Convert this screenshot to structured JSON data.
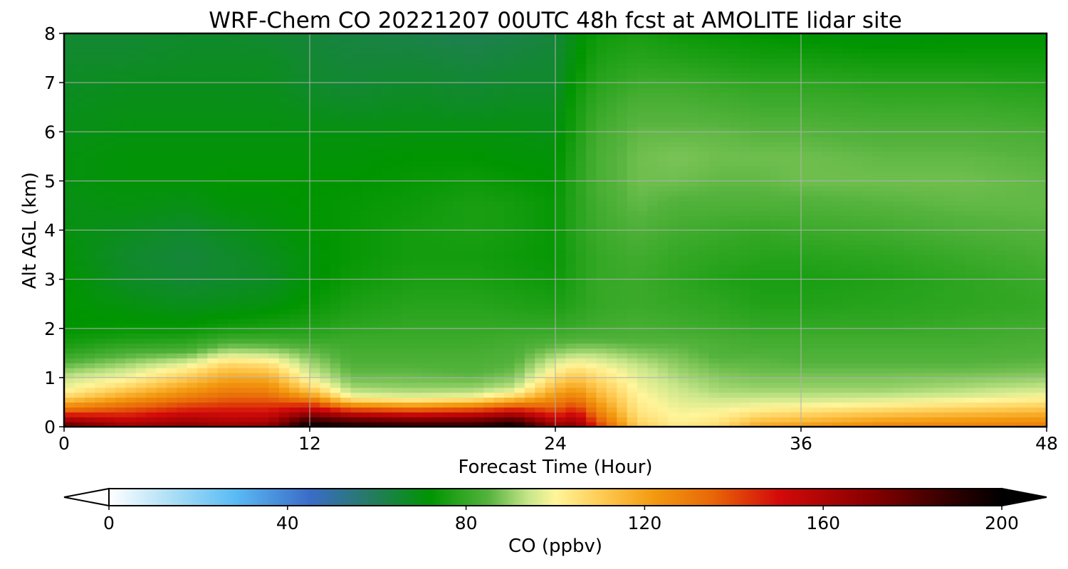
{
  "chart_data": {
    "type": "heatmap",
    "title": "WRF-Chem CO  20221207 00UTC 48h fcst at AMOLITE lidar site",
    "xlabel": "Forecast Time (Hour)",
    "ylabel": "Alt AGL (km)",
    "xlim": [
      0,
      48
    ],
    "ylim": [
      0,
      8
    ],
    "xticks": [
      "0",
      "12",
      "24",
      "36",
      "48"
    ],
    "yticks": [
      "0",
      "1",
      "2",
      "3",
      "4",
      "5",
      "6",
      "7",
      "8"
    ],
    "grid": true,
    "colorbar": {
      "label": "CO  (ppbv)",
      "range": [
        0,
        200
      ],
      "extend": "both",
      "ticks": [
        "0",
        "40",
        "80",
        "120",
        "160",
        "200"
      ],
      "stops": [
        {
          "v": 0,
          "color": "#ffffff"
        },
        {
          "v": 15,
          "color": "#a6dcf5"
        },
        {
          "v": 28,
          "color": "#5bbcf5"
        },
        {
          "v": 45,
          "color": "#3a6cc8"
        },
        {
          "v": 58,
          "color": "#267a66"
        },
        {
          "v": 72,
          "color": "#009500"
        },
        {
          "v": 85,
          "color": "#55b33d"
        },
        {
          "v": 94,
          "color": "#c8e68a"
        },
        {
          "v": 100,
          "color": "#fff59a"
        },
        {
          "v": 110,
          "color": "#ffcc55"
        },
        {
          "v": 122,
          "color": "#f39a10"
        },
        {
          "v": 135,
          "color": "#e86808"
        },
        {
          "v": 150,
          "color": "#d40a0a"
        },
        {
          "v": 170,
          "color": "#8a0000"
        },
        {
          "v": 190,
          "color": "#2a0000"
        },
        {
          "v": 200,
          "color": "#000000"
        }
      ]
    },
    "x_hours": [
      0,
      3,
      6,
      8,
      10,
      12,
      14,
      17,
      20,
      22,
      24,
      25,
      26,
      28,
      30,
      32,
      34,
      36,
      40,
      44,
      48
    ],
    "altitudes_km": [
      0.0,
      0.1,
      0.2,
      0.3,
      0.4,
      0.5,
      0.6,
      0.7,
      0.8,
      0.9,
      1.0,
      1.1,
      1.2,
      1.3,
      1.4,
      1.5,
      1.6,
      1.8,
      2.0,
      2.5,
      3.0,
      3.5,
      4.0,
      4.5,
      5.0,
      5.5,
      6.0,
      6.5,
      7.0,
      7.5,
      8.0
    ],
    "values": [
      [
        182,
        165,
        170,
        165,
        170,
        200,
        195,
        192,
        192,
        200,
        168,
        170,
        145,
        110,
        102,
        106,
        120,
        123,
        128,
        128,
        130
      ],
      [
        168,
        158,
        164,
        160,
        162,
        192,
        185,
        180,
        180,
        188,
        160,
        165,
        140,
        108,
        101,
        104,
        114,
        116,
        122,
        124,
        126
      ],
      [
        155,
        150,
        158,
        155,
        156,
        178,
        168,
        162,
        165,
        172,
        150,
        158,
        135,
        106,
        100,
        102,
        109,
        111,
        116,
        119,
        121
      ],
      [
        140,
        142,
        150,
        150,
        150,
        162,
        150,
        145,
        148,
        155,
        142,
        150,
        130,
        104,
        99,
        100,
        104,
        106,
        110,
        113,
        116
      ],
      [
        128,
        135,
        143,
        145,
        145,
        150,
        132,
        128,
        132,
        140,
        135,
        142,
        126,
        103,
        98,
        98,
        100,
        101,
        104,
        107,
        110
      ],
      [
        118,
        128,
        137,
        140,
        140,
        138,
        115,
        110,
        115,
        125,
        130,
        136,
        122,
        102,
        97,
        96,
        97,
        97,
        99,
        102,
        105
      ],
      [
        108,
        120,
        130,
        135,
        135,
        125,
        100,
        98,
        100,
        110,
        125,
        130,
        118,
        101,
        96,
        94,
        94,
        94,
        95,
        97,
        100
      ],
      [
        102,
        114,
        125,
        131,
        130,
        115,
        95,
        93,
        94,
        100,
        120,
        125,
        115,
        100,
        95,
        92,
        92,
        92,
        92,
        94,
        97
      ],
      [
        98,
        108,
        120,
        127,
        126,
        108,
        91,
        90,
        90,
        94,
        115,
        120,
        112,
        99,
        94,
        91,
        90,
        90,
        90,
        92,
        94
      ],
      [
        96,
        103,
        115,
        123,
        122,
        102,
        89,
        88,
        88,
        91,
        110,
        116,
        109,
        98,
        93,
        90,
        89,
        89,
        89,
        90,
        92
      ],
      [
        94,
        99,
        110,
        119,
        118,
        98,
        87,
        87,
        86,
        89,
        106,
        112,
        106,
        97,
        92,
        89,
        88,
        88,
        88,
        89,
        90
      ],
      [
        91,
        96,
        106,
        115,
        113,
        95,
        86,
        86,
        85,
        87,
        102,
        108,
        104,
        96,
        91,
        88,
        87,
        87,
        87,
        87,
        88
      ],
      [
        88,
        93,
        101,
        111,
        109,
        93,
        85,
        85,
        84,
        86,
        99,
        104,
        101,
        95,
        90,
        87,
        86,
        86,
        86,
        86,
        87
      ],
      [
        85,
        90,
        96,
        106,
        104,
        91,
        84,
        84,
        84,
        85,
        96,
        100,
        98,
        93,
        89,
        86,
        86,
        85,
        85,
        85,
        86
      ],
      [
        82,
        87,
        91,
        100,
        98,
        89,
        83,
        83,
        83,
        84,
        93,
        96,
        95,
        91,
        88,
        85,
        85,
        84,
        84,
        84,
        85
      ],
      [
        79,
        84,
        86,
        94,
        93,
        87,
        83,
        83,
        83,
        84,
        90,
        92,
        92,
        89,
        87,
        84,
        84,
        84,
        84,
        84,
        84
      ],
      [
        77,
        81,
        82,
        89,
        88,
        85,
        82,
        82,
        82,
        83,
        87,
        89,
        89,
        87,
        86,
        84,
        83,
        83,
        83,
        83,
        84
      ],
      [
        74,
        76,
        77,
        81,
        81,
        80,
        81,
        81,
        81,
        82,
        83,
        84,
        84,
        84,
        84,
        83,
        82,
        82,
        82,
        82,
        83
      ],
      [
        72,
        73,
        73,
        75,
        76,
        77,
        79,
        80,
        80,
        80,
        80,
        81,
        82,
        83,
        82,
        81,
        80,
        80,
        80,
        81,
        82
      ],
      [
        72,
        70,
        68,
        69,
        70,
        73,
        76,
        78,
        78,
        77,
        76,
        78,
        80,
        81,
        80,
        79,
        77,
        77,
        78,
        79,
        80
      ],
      [
        72,
        67,
        65,
        66,
        67,
        71,
        74,
        76,
        76,
        75,
        74,
        77,
        80,
        81,
        79,
        77,
        76,
        76,
        77,
        79,
        81
      ],
      [
        71,
        66,
        64,
        66,
        68,
        71,
        73,
        75,
        75,
        74,
        73,
        77,
        80,
        82,
        80,
        79,
        78,
        78,
        79,
        81,
        83
      ],
      [
        70,
        68,
        66,
        68,
        70,
        72,
        73,
        75,
        76,
        75,
        73,
        78,
        81,
        84,
        82,
        81,
        80,
        81,
        82,
        84,
        85
      ],
      [
        69,
        70,
        69,
        71,
        71,
        72,
        73,
        74,
        76,
        75,
        73,
        78,
        82,
        86,
        84,
        84,
        84,
        84,
        85,
        86,
        86
      ],
      [
        70,
        71,
        71,
        72,
        72,
        72,
        72,
        73,
        74,
        73,
        72,
        78,
        83,
        87,
        87,
        86,
        86,
        87,
        87,
        87,
        86
      ],
      [
        70,
        71,
        71,
        71,
        71,
        71,
        71,
        72,
        72,
        71,
        71,
        77,
        83,
        87,
        88,
        87,
        87,
        87,
        86,
        86,
        85
      ],
      [
        69,
        70,
        70,
        70,
        70,
        70,
        70,
        70,
        70,
        70,
        69,
        76,
        82,
        86,
        86,
        86,
        85,
        85,
        84,
        84,
        83
      ],
      [
        68,
        69,
        69,
        69,
        69,
        68,
        67,
        68,
        67,
        68,
        68,
        75,
        80,
        84,
        84,
        83,
        82,
        82,
        81,
        81,
        80
      ],
      [
        67,
        68,
        68,
        68,
        68,
        66,
        65,
        66,
        65,
        66,
        66,
        73,
        78,
        81,
        81,
        80,
        79,
        79,
        78,
        78,
        77
      ],
      [
        66,
        66,
        67,
        67,
        67,
        65,
        64,
        64,
        63,
        64,
        65,
        71,
        76,
        78,
        77,
        76,
        75,
        75,
        74,
        74,
        74
      ],
      [
        65,
        65,
        66,
        66,
        65,
        64,
        63,
        62,
        61,
        62,
        64,
        70,
        74,
        76,
        74,
        73,
        72,
        71,
        70,
        71,
        71
      ]
    ]
  }
}
